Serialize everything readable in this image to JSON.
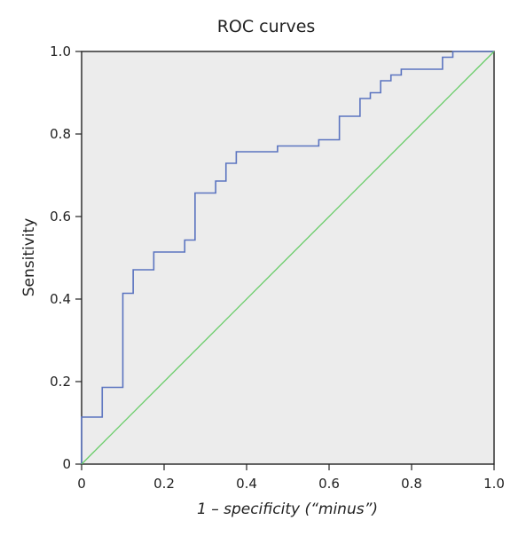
{
  "chart_data": {
    "type": "line",
    "title": "ROC curves",
    "xlabel": "1 – specificity (“minus”)",
    "ylabel": "Sensitivity",
    "xlim": [
      0,
      1
    ],
    "ylim": [
      0,
      1
    ],
    "x_ticks": [
      "0",
      "0.2",
      "0.4",
      "0.6",
      "0.8",
      "1.0"
    ],
    "y_ticks": [
      "0",
      "0.2",
      "0.4",
      "0.6",
      "0.8",
      "1.0"
    ],
    "grid": false,
    "background": "#ececec",
    "series": [
      {
        "color": "#5b74c0",
        "step_points": [
          [
            0,
            0
          ],
          [
            0,
            0.114
          ],
          [
            0.05,
            0.114
          ],
          [
            0.05,
            0.186
          ],
          [
            0.1,
            0.186
          ],
          [
            0.1,
            0.414
          ],
          [
            0.125,
            0.414
          ],
          [
            0.125,
            0.471
          ],
          [
            0.175,
            0.471
          ],
          [
            0.175,
            0.514
          ],
          [
            0.25,
            0.514
          ],
          [
            0.25,
            0.543
          ],
          [
            0.275,
            0.543
          ],
          [
            0.275,
            0.657
          ],
          [
            0.325,
            0.657
          ],
          [
            0.325,
            0.686
          ],
          [
            0.35,
            0.686
          ],
          [
            0.35,
            0.729
          ],
          [
            0.375,
            0.729
          ],
          [
            0.375,
            0.757
          ],
          [
            0.475,
            0.757
          ],
          [
            0.475,
            0.771
          ],
          [
            0.575,
            0.771
          ],
          [
            0.575,
            0.786
          ],
          [
            0.625,
            0.786
          ],
          [
            0.625,
            0.843
          ],
          [
            0.675,
            0.843
          ],
          [
            0.675,
            0.886
          ],
          [
            0.7,
            0.886
          ],
          [
            0.7,
            0.9
          ],
          [
            0.725,
            0.9
          ],
          [
            0.725,
            0.929
          ],
          [
            0.75,
            0.929
          ],
          [
            0.75,
            0.943
          ],
          [
            0.775,
            0.943
          ],
          [
            0.775,
            0.957
          ],
          [
            0.875,
            0.957
          ],
          [
            0.875,
            0.986
          ],
          [
            0.9,
            0.986
          ],
          [
            0.9,
            1.0
          ],
          [
            1.0,
            1.0
          ]
        ]
      },
      {
        "color": "#66cc66",
        "reference_line": [
          [
            0,
            0
          ],
          [
            1,
            1
          ]
        ]
      }
    ]
  }
}
